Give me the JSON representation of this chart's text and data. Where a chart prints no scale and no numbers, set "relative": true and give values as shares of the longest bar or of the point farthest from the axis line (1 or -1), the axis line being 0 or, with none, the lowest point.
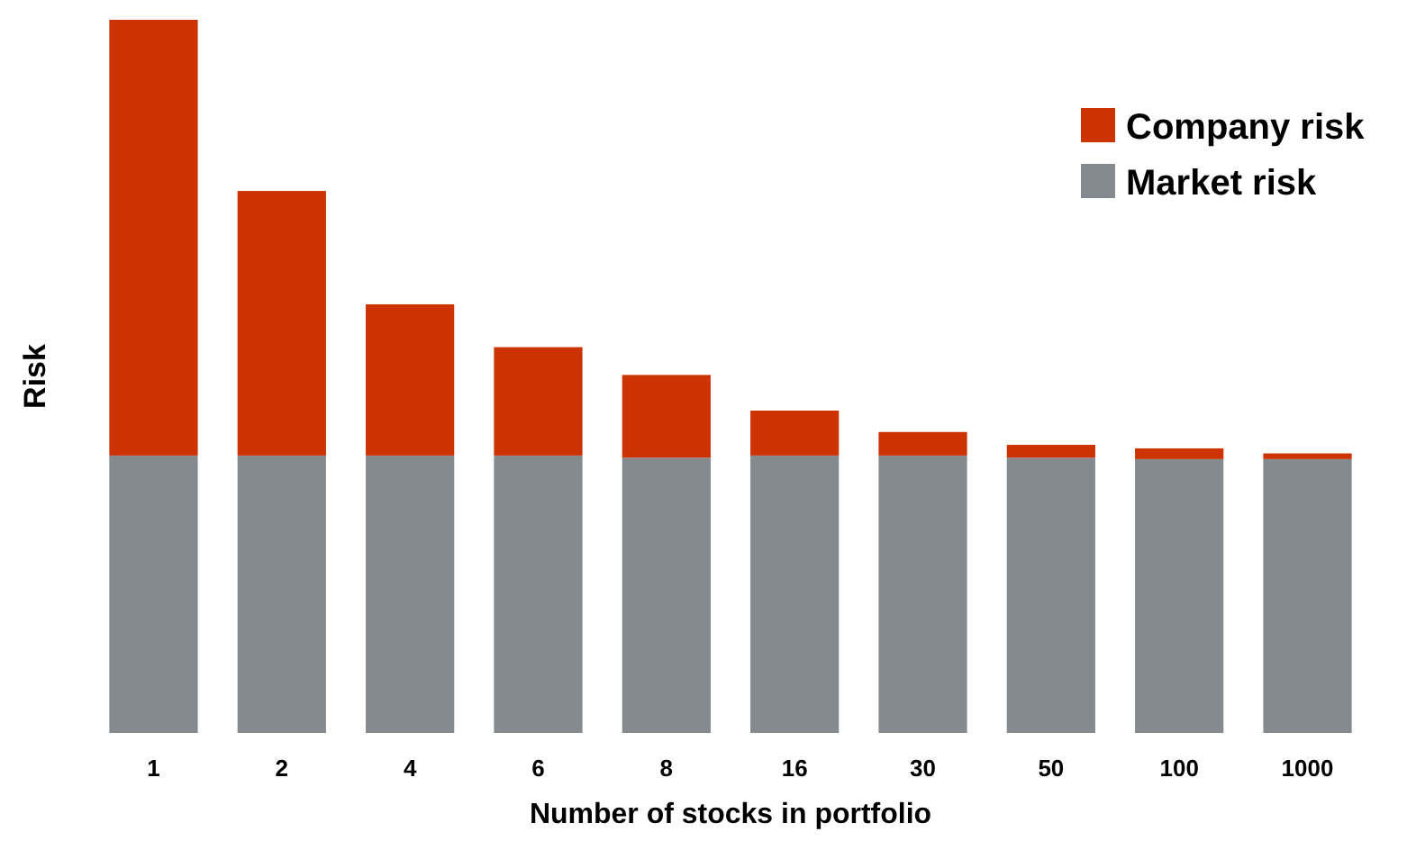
{
  "chart_data": {
    "type": "bar",
    "stacked": true,
    "relative": true,
    "xlabel": "Number of stocks in portfolio",
    "ylabel": "Risk",
    "legend": "top right",
    "categories": [
      "1",
      "2",
      "4",
      "6",
      "8",
      "16",
      "30",
      "50",
      "100",
      "1000"
    ],
    "series": [
      {
        "name": "Market risk",
        "color": "#858a8f",
        "values": [
          0.389,
          0.389,
          0.389,
          0.389,
          0.386,
          0.389,
          0.389,
          0.386,
          0.384,
          0.384
        ]
      },
      {
        "name": "Company risk",
        "color": "#cc3300",
        "values": [
          0.611,
          0.371,
          0.212,
          0.152,
          0.116,
          0.063,
          0.033,
          0.018,
          0.015,
          0.008
        ]
      }
    ]
  }
}
